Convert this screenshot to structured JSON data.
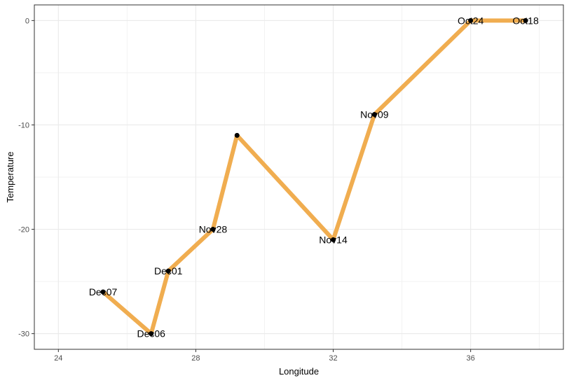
{
  "chart_data": {
    "type": "line",
    "title": "",
    "xlabel": "Longitude",
    "ylabel": "Temperature",
    "xlim": [
      23.3,
      38.7
    ],
    "ylim": [
      -31.5,
      1.5
    ],
    "x_ticks": [
      24,
      28,
      32,
      36
    ],
    "y_ticks": [
      0,
      -10,
      -20,
      -30
    ],
    "x_minor_ticks": [
      26,
      30,
      34,
      38
    ],
    "y_minor_ticks": [
      -5,
      -15,
      -25
    ],
    "grid": true,
    "legend": "none",
    "line_color": "#F0AD50",
    "point_color": "#000000",
    "series": [
      {
        "points": [
          {
            "x": 37.6,
            "y": 0,
            "label": "Oct18"
          },
          {
            "x": 36.0,
            "y": 0,
            "label": "Oct24"
          },
          {
            "x": 33.2,
            "y": -9,
            "label": "Nov09"
          },
          {
            "x": 32.0,
            "y": -21,
            "label": "Nov14"
          },
          {
            "x": 29.2,
            "y": -11,
            "label": ""
          },
          {
            "x": 28.5,
            "y": -20,
            "label": "Nov28"
          },
          {
            "x": 27.2,
            "y": -24,
            "label": "Dec01"
          },
          {
            "x": 26.7,
            "y": -30,
            "label": "Dec06"
          },
          {
            "x": 25.3,
            "y": -26,
            "label": "Dec07"
          }
        ]
      }
    ]
  }
}
